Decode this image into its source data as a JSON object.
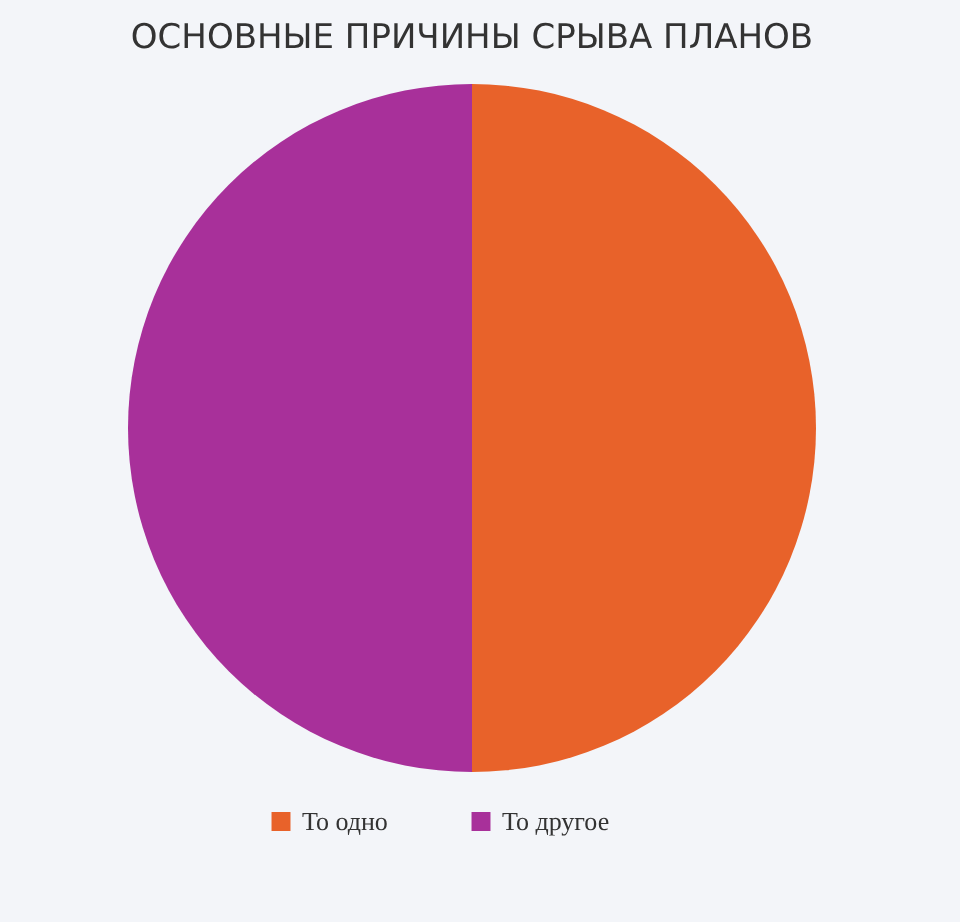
{
  "chart_data": {
    "type": "pie",
    "title": "ОСНОВНЫЕ ПРИЧИНЫ СРЫВА ПЛАНОВ",
    "categories": [
      "То одно",
      "То другое"
    ],
    "values": [
      50,
      50
    ],
    "colors": [
      "#e8622a",
      "#a8309a"
    ],
    "legend": "bottom"
  }
}
